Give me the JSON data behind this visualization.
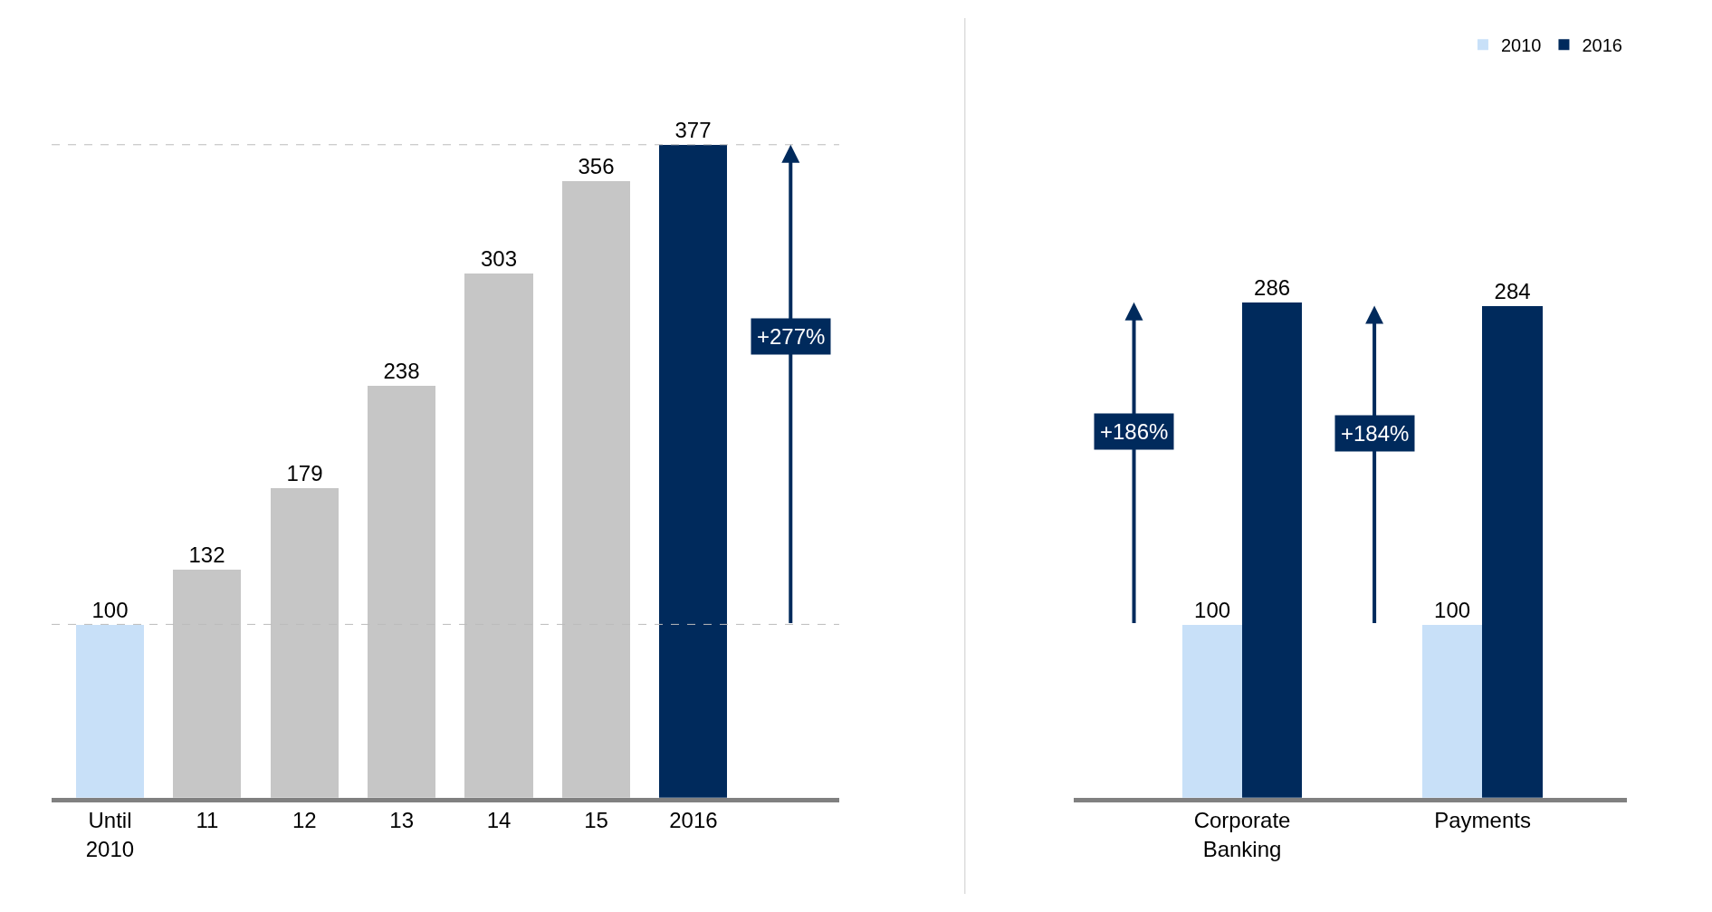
{
  "chart_data": [
    {
      "type": "bar",
      "categories": [
        "Until\n2010",
        "11",
        "12",
        "13",
        "14",
        "15",
        "2016"
      ],
      "values": [
        100,
        132,
        179,
        238,
        303,
        356,
        377
      ],
      "colors": [
        "#c8e0f8",
        "#c6c6c6",
        "#c6c6c6",
        "#c6c6c6",
        "#c6c6c6",
        "#c6c6c6",
        "#002a5c"
      ],
      "data_labels": true,
      "tick_labels": "x",
      "legend": false,
      "annotations": [
        "+277%"
      ],
      "ref_lines": [
        {
          "axis": "y",
          "value": 100,
          "color": "#bbbbbb",
          "line_style": "dashed"
        },
        {
          "axis": "y",
          "value": 377,
          "color": "#bbbbbb",
          "line_style": "dashed"
        }
      ]
    },
    {
      "type": "bar",
      "categories": [
        "Corporate\nBanking",
        "Payments"
      ],
      "series": [
        {
          "name": "2010",
          "color": "#c8e0f8",
          "values": [
            100,
            100
          ]
        },
        {
          "name": "2016",
          "color": "#002a5c",
          "values": [
            286,
            284
          ]
        }
      ],
      "data_labels": true,
      "tick_labels": "x",
      "legend": "top right",
      "annotations": [
        "+186%",
        "+184%"
      ]
    }
  ]
}
